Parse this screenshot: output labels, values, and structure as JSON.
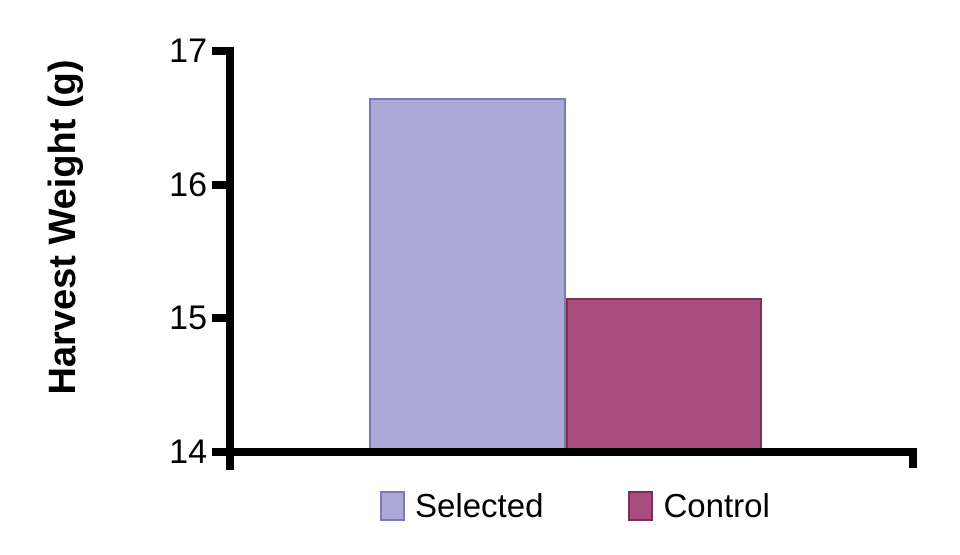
{
  "chart_data": {
    "type": "bar",
    "title": "",
    "xlabel": "",
    "ylabel": "Harvest Weight (g)",
    "categories": [
      "Selected",
      "Control"
    ],
    "values": [
      16.65,
      15.15
    ],
    "ylim": [
      14,
      17
    ],
    "yticks": [
      17,
      16,
      15,
      14
    ],
    "grid": false,
    "legend_position": "bottom",
    "background_color": "#FFFFFF",
    "axis_color": "#000000",
    "series_colors": [
      {
        "name": "Selected",
        "fill": "#ACA9D6",
        "border": "#7C79B8"
      },
      {
        "name": "Control",
        "fill": "#A94C7E",
        "border": "#7D2F58"
      }
    ]
  }
}
